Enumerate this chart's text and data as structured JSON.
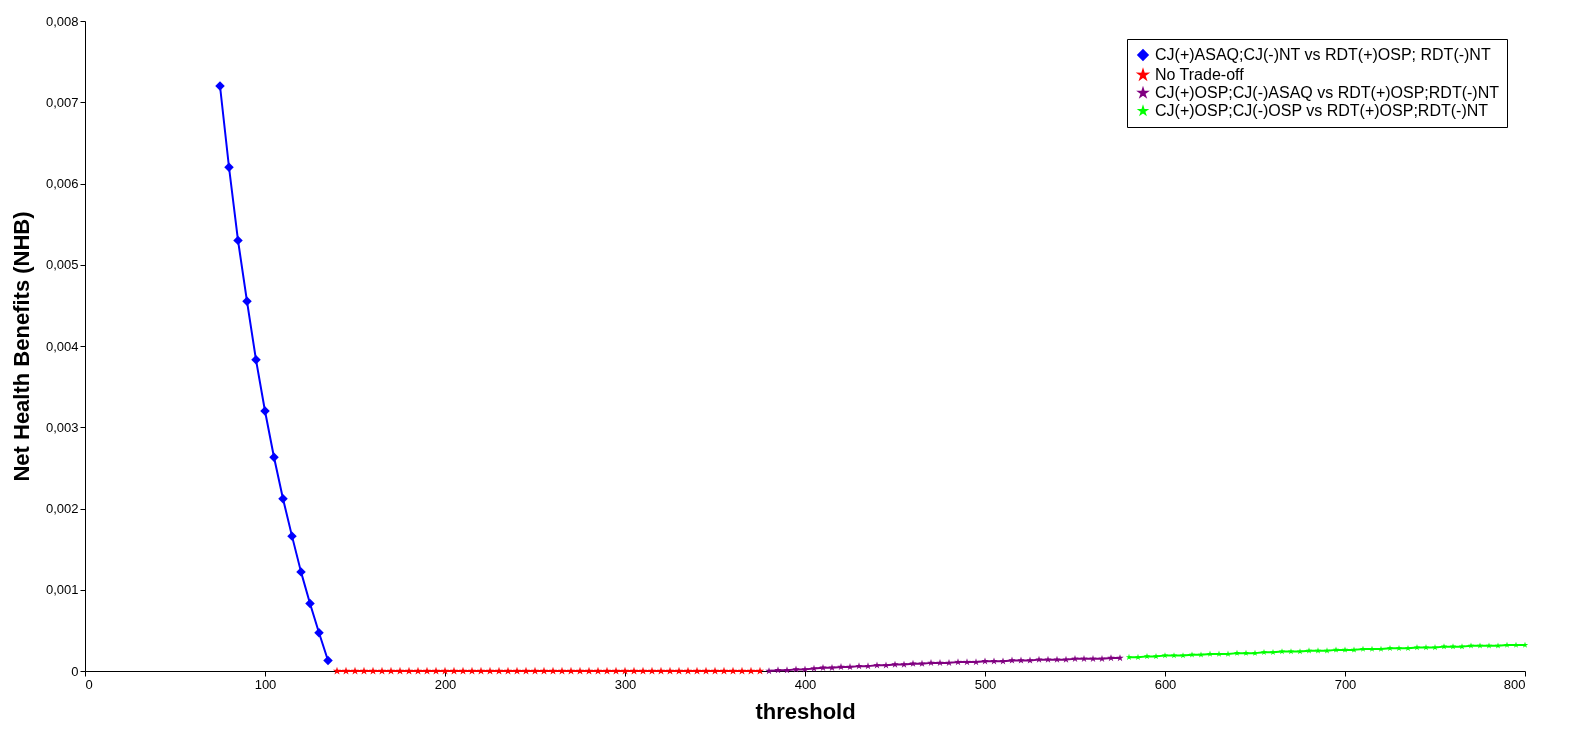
{
  "chart_data": {
    "type": "line",
    "xlabel": "threshold",
    "ylabel": "Net Health Benefits (NHB)",
    "xlim": [
      0,
      800
    ],
    "xticks": [
      0,
      100,
      200,
      300,
      400,
      500,
      600,
      700,
      800
    ],
    "ylim": [
      0,
      0.008
    ],
    "yticks": [
      0,
      {
        "value": 0.001,
        "label": "0,001"
      },
      {
        "value": 0.002,
        "label": "0,002"
      },
      {
        "value": 0.003,
        "label": "0,003"
      },
      {
        "value": 0.004,
        "label": "0,004"
      },
      {
        "value": 0.005,
        "label": "0,005"
      },
      {
        "value": 0.006,
        "label": "0,006"
      },
      {
        "value": 0.007,
        "label": "0,007"
      },
      {
        "value": 0.008,
        "label": "0,008"
      }
    ],
    "grid": false,
    "legend": "top right",
    "line_style": "solid",
    "series": [
      {
        "name": "CJ(+)ASAQ;CJ(-)NT vs RDT(+)OSP; RDT(-)NT",
        "color": "#0000ff",
        "marker": "diamond",
        "x": [
          75,
          80,
          85,
          90,
          95,
          100,
          105,
          110,
          115,
          120,
          125,
          130,
          135
        ],
        "values": [
          0.0072,
          0.0062,
          0.0053,
          0.00455,
          0.00383,
          0.0032,
          0.00263,
          0.00212,
          0.00166,
          0.00122,
          0.00083,
          0.00047,
          0.00013
        ]
      },
      {
        "name": "No Trade-off",
        "color": "#ff0000",
        "marker": "star",
        "x": [
          140,
          145,
          150,
          155,
          160,
          165,
          170,
          175,
          180,
          185,
          190,
          195,
          200,
          205,
          210,
          215,
          220,
          225,
          230,
          235,
          240,
          245,
          250,
          255,
          260,
          265,
          270,
          275,
          280,
          285,
          290,
          295,
          300,
          305,
          310,
          315,
          320,
          325,
          330,
          335,
          340,
          345,
          350,
          355,
          360,
          365,
          370,
          375
        ],
        "values": [
          0,
          0,
          0,
          0,
          0,
          0,
          0,
          0,
          0,
          0,
          0,
          0,
          0,
          0,
          0,
          0,
          0,
          0,
          0,
          0,
          0,
          0,
          0,
          0,
          0,
          0,
          0,
          0,
          0,
          0,
          0,
          0,
          0,
          0,
          0,
          0,
          0,
          0,
          0,
          0,
          0,
          0,
          0,
          0,
          0,
          0,
          0,
          0
        ]
      },
      {
        "name": "CJ(+)OSP;CJ(-)ASAQ vs RDT(+)OSP;RDT(-)NT",
        "color": "#800080",
        "marker": "star",
        "x": [
          380,
          385,
          390,
          395,
          400,
          405,
          410,
          415,
          420,
          425,
          430,
          435,
          440,
          445,
          450,
          455,
          460,
          465,
          470,
          475,
          480,
          485,
          490,
          495,
          500,
          505,
          510,
          515,
          520,
          525,
          530,
          535,
          540,
          545,
          550,
          555,
          560,
          565,
          570,
          575
        ],
        "values": [
          0,
          1e-05,
          1e-05,
          2e-05,
          2e-05,
          3e-05,
          4e-05,
          4e-05,
          5e-05,
          5e-05,
          6e-05,
          6e-05,
          7e-05,
          7e-05,
          8e-05,
          8e-05,
          9e-05,
          9e-05,
          0.0001,
          0.0001,
          0.0001,
          0.00011,
          0.00011,
          0.00011,
          0.00012,
          0.00012,
          0.00012,
          0.00013,
          0.00013,
          0.00013,
          0.00014,
          0.00014,
          0.00014,
          0.00014,
          0.00015,
          0.00015,
          0.00015,
          0.00015,
          0.00016,
          0.00016
        ]
      },
      {
        "name": "CJ(+)OSP;CJ(-)OSP vs RDT(+)OSP;RDT(-)NT",
        "color": "#00ff00",
        "marker": "star",
        "x": [
          580,
          585,
          590,
          595,
          600,
          605,
          610,
          615,
          620,
          625,
          630,
          635,
          640,
          645,
          650,
          655,
          660,
          665,
          670,
          675,
          680,
          685,
          690,
          695,
          700,
          705,
          710,
          715,
          720,
          725,
          730,
          735,
          740,
          745,
          750,
          755,
          760,
          765,
          770,
          775,
          780,
          785,
          790,
          795,
          800
        ],
        "values": [
          0.00017,
          0.00017,
          0.00018,
          0.00018,
          0.00019,
          0.00019,
          0.00019,
          0.0002,
          0.0002,
          0.00021,
          0.00021,
          0.00021,
          0.00022,
          0.00022,
          0.00022,
          0.00023,
          0.00023,
          0.00024,
          0.00024,
          0.00024,
          0.00025,
          0.00025,
          0.00025,
          0.00026,
          0.00026,
          0.00026,
          0.00027,
          0.00027,
          0.00027,
          0.00028,
          0.00028,
          0.00028,
          0.00029,
          0.00029,
          0.00029,
          0.0003,
          0.0003,
          0.0003,
          0.00031,
          0.00031,
          0.00031,
          0.00031,
          0.00032,
          0.00032,
          0.00032
        ]
      }
    ]
  }
}
